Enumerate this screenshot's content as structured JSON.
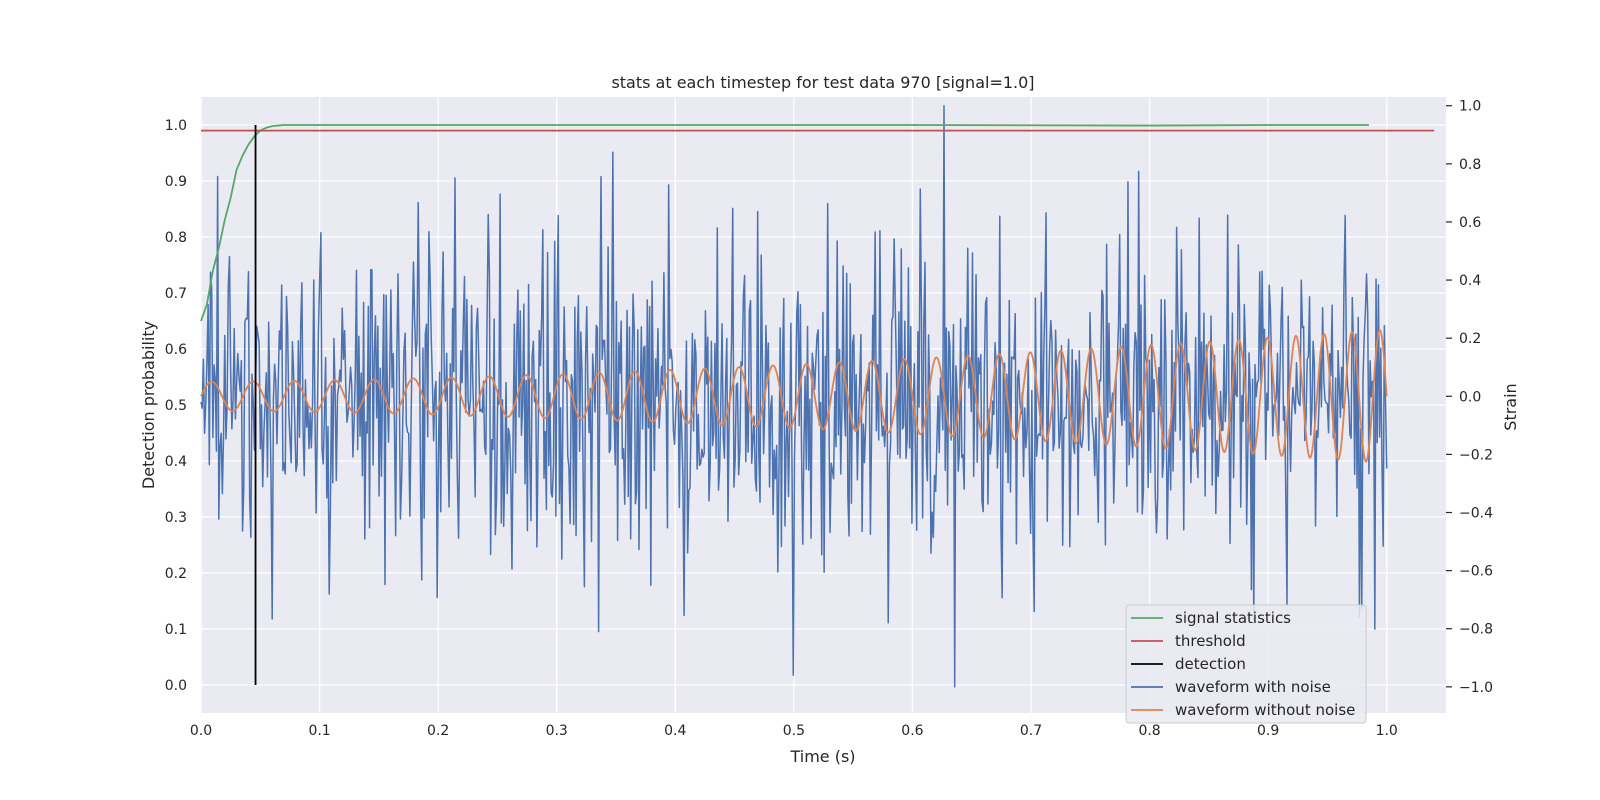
{
  "chart_data": {
    "type": "line",
    "title": "stats at each timestep for test data 970 [signal=1.0]",
    "xlabel": "Time (s)",
    "ylabel": "Detection probability",
    "ylabel_right": "Strain",
    "xlim": [
      0.0,
      1.05
    ],
    "ylim": [
      -0.05,
      1.05
    ],
    "ylim_right": [
      -1.09,
      1.03
    ],
    "xticks": [
      0.0,
      0.1,
      0.2,
      0.3,
      0.4,
      0.5,
      0.6,
      0.7,
      0.8,
      0.9,
      1.0
    ],
    "xtick_labels": [
      "0.0",
      "0.1",
      "0.2",
      "0.3",
      "0.4",
      "0.5",
      "0.6",
      "0.7",
      "0.8",
      "0.9",
      "1.0"
    ],
    "yticks": [
      0.0,
      0.1,
      0.2,
      0.3,
      0.4,
      0.5,
      0.6,
      0.7,
      0.8,
      0.9,
      1.0
    ],
    "ytick_labels": [
      "0.0",
      "0.1",
      "0.2",
      "0.3",
      "0.4",
      "0.5",
      "0.6",
      "0.7",
      "0.8",
      "0.9",
      "1.0"
    ],
    "yticks_right": [
      -1.0,
      -0.8,
      -0.6,
      -0.4,
      -0.2,
      0.0,
      0.2,
      0.4,
      0.6,
      0.8,
      1.0
    ],
    "ytick_labels_right": [
      "−1.0",
      "−0.8",
      "−0.6",
      "−0.4",
      "−0.2",
      "0.0",
      "0.2",
      "0.4",
      "0.6",
      "0.8",
      "1.0"
    ],
    "grid": true,
    "legend_position": "bottom-right",
    "background": "#eaeaf2",
    "series": [
      {
        "name": "signal statistics",
        "axis": "left",
        "color": "#55a868",
        "x": [
          0.0,
          0.005,
          0.01,
          0.015,
          0.02,
          0.025,
          0.03,
          0.035,
          0.04,
          0.045,
          0.05,
          0.055,
          0.06,
          0.065,
          0.07,
          0.08,
          0.1,
          0.2,
          0.4,
          0.6,
          0.8,
          0.9,
          0.985
        ],
        "y": [
          0.65,
          0.68,
          0.74,
          0.78,
          0.83,
          0.87,
          0.92,
          0.945,
          0.965,
          0.98,
          0.99,
          0.995,
          0.998,
          0.999,
          1.0,
          1.0,
          1.0,
          1.0,
          1.0,
          1.0,
          0.999,
          1.0,
          1.0
        ]
      },
      {
        "name": "threshold",
        "axis": "left",
        "color": "#c44e52",
        "x": [
          0.0,
          1.04
        ],
        "y": [
          0.99,
          0.99
        ]
      },
      {
        "name": "detection",
        "axis": "left",
        "color": "#000000",
        "x": [
          0.046,
          0.046
        ],
        "y": [
          0.0,
          1.0
        ]
      },
      {
        "name": "waveform with noise",
        "axis": "right",
        "color": "#4c72b0",
        "generator": "noise",
        "n": 1000,
        "seed": 970,
        "std": 0.28,
        "x": [
          0.0,
          1.0
        ],
        "peaks": [
          [
            0.347,
            0.84
          ],
          [
            0.627,
            1.0
          ],
          [
            0.335,
            -0.81
          ],
          [
            0.499,
            -0.96
          ],
          [
            0.636,
            -1.0
          ],
          [
            0.58,
            -0.78
          ],
          [
            0.916,
            -0.72
          ],
          [
            0.977,
            -0.76
          ],
          [
            0.979,
            -0.73
          ]
        ]
      },
      {
        "name": "waveform without noise",
        "axis": "right",
        "color": "#dd8452",
        "generator": "chirp",
        "x": [
          0.0,
          1.0
        ],
        "amp_start": 0.05,
        "amp_end": 0.23,
        "freq_start": 28,
        "freq_end": 43
      }
    ]
  }
}
